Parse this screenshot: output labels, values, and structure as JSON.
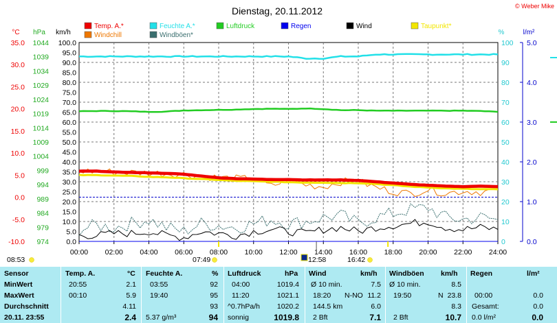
{
  "title": "Dienstag, 20.11.2012",
  "copyright": "© Weber Mike",
  "colors": {
    "temp": "#ee0000",
    "humidity": "#22e0e8",
    "pressure": "#22cc22",
    "rain": "#0000ee",
    "wind": "#000000",
    "dewpoint": "#f2e600",
    "windchill": "#ee7700",
    "gust": "#3a6f6f"
  },
  "legend": [
    {
      "label": "Temp. A.*",
      "color": "#ee0000"
    },
    {
      "label": "Feuchte A.*",
      "color": "#22e0e8"
    },
    {
      "label": "Luftdruck",
      "color": "#22cc22"
    },
    {
      "label": "Regen",
      "color": "#0000ee"
    },
    {
      "label": "Wind",
      "color": "#000000"
    },
    {
      "label": "Taupunkt*",
      "color": "#f2e600"
    },
    {
      "label": "Windchill",
      "color": "#ee7700"
    },
    {
      "label": "Windböen*",
      "color": "#3a6f6f"
    }
  ],
  "axis_units": {
    "temp": "°C",
    "pressure": "hPa",
    "wind": "km/h",
    "humidity": "%",
    "rain": "l/m²"
  },
  "axes": {
    "temp_ticks": [
      "35.0",
      "30.0",
      "25.0",
      "20.0",
      "15.0",
      "10.0",
      "5.0",
      "0.0",
      "-5.0",
      "-10.0"
    ],
    "pressure_ticks": [
      "1044",
      "1039",
      "1034",
      "1029",
      "1024",
      "1019",
      "1014",
      "1009",
      "1004",
      "999",
      "994",
      "989",
      "984",
      "979",
      "974"
    ],
    "wind_ticks": [
      "100.0",
      "95.0",
      "90.0",
      "85.0",
      "80.0",
      "75.0",
      "70.0",
      "65.0",
      "60.0",
      "55.0",
      "50.0",
      "45.0",
      "40.0",
      "35.0",
      "30.0",
      "25.0",
      "20.0",
      "15.0",
      "10.0",
      "5.0",
      "0.0"
    ],
    "humidity_ticks": [
      "100",
      "90",
      "80",
      "70",
      "60",
      "50",
      "40",
      "30",
      "20",
      "10",
      "0"
    ],
    "rain_ticks": [
      "5.0",
      "4.0",
      "3.0",
      "2.0",
      "1.0",
      "0.0"
    ],
    "time_ticks": [
      "00:00",
      "02:00",
      "04:00",
      "06:00",
      "08:00",
      "10:00",
      "12:00",
      "14:00",
      "16:00",
      "18:00",
      "20:00",
      "22:00",
      "24:00"
    ]
  },
  "markers": [
    {
      "label": "08:53",
      "icon": "sunrise-icon"
    },
    {
      "label": "07:49",
      "icon": "sun-icon"
    },
    {
      "label": "12:58",
      "icon": "moon-icon"
    },
    {
      "label": "16:42",
      "icon": "sunset-icon"
    }
  ],
  "chart_data": {
    "type": "line",
    "title": "Dienstag, 20.11.2012",
    "x_label": "",
    "x_range": [
      "00:00",
      "24:00"
    ],
    "ylim_temp": [
      -10,
      35
    ],
    "ylim_wind": [
      0,
      100
    ],
    "ylim_pressure": [
      974,
      1044
    ],
    "ylim_humidity": [
      0,
      100
    ],
    "ylim_rain": [
      0,
      5
    ],
    "x_hours": [
      0,
      1,
      2,
      3,
      4,
      5,
      6,
      7,
      8,
      9,
      10,
      11,
      12,
      13,
      14,
      15,
      16,
      17,
      18,
      19,
      20,
      21,
      22,
      23,
      24
    ],
    "series": [
      {
        "name": "Temp. A.*",
        "axis": "temp",
        "values": [
          5.9,
          5.9,
          5.7,
          5.6,
          5.5,
          5.4,
          5.2,
          4.8,
          4.4,
          4.2,
          4.1,
          4.0,
          4.0,
          3.9,
          3.9,
          3.9,
          3.8,
          3.5,
          3.2,
          2.9,
          2.7,
          2.5,
          2.4,
          2.5,
          2.4
        ]
      },
      {
        "name": "Taupunkt*",
        "axis": "temp",
        "values": [
          5.0,
          5.0,
          4.9,
          4.8,
          4.6,
          4.5,
          4.3,
          4.1,
          3.9,
          3.7,
          3.6,
          3.5,
          3.4,
          3.3,
          3.3,
          3.2,
          3.2,
          3.0,
          2.7,
          2.4,
          2.2,
          2.0,
          1.9,
          1.8,
          1.8
        ]
      },
      {
        "name": "Windchill",
        "axis": "temp",
        "values": [
          5.9,
          5.9,
          5.7,
          5.6,
          5.5,
          5.4,
          5.2,
          4.8,
          4.4,
          4.2,
          4.1,
          2.5,
          3.9,
          2.8,
          2.4,
          3.5,
          3.6,
          2.2,
          1.3,
          0.8,
          1.8,
          0.9,
          1.4,
          1.2,
          1.6
        ]
      },
      {
        "name": "Feuchte A.*",
        "axis": "humidity",
        "values": [
          93,
          93,
          93,
          93,
          93,
          93,
          93,
          93,
          93,
          93,
          93,
          93,
          93,
          92,
          92,
          93,
          93,
          94,
          94,
          94,
          94,
          94,
          94,
          94,
          94
        ]
      },
      {
        "name": "Luftdruck",
        "axis": "pressure",
        "values": [
          1019.8,
          1019.9,
          1019.9,
          1019.8,
          1019.6,
          1019.7,
          1020.1,
          1020.2,
          1020.3,
          1020.4,
          1020.6,
          1020.7,
          1020.6,
          1020.8,
          1020.6,
          1020.2,
          1020.2,
          1020.0,
          1020.0,
          1020.0,
          1020.0,
          1020.0,
          1020.0,
          1019.9,
          1019.6
        ]
      },
      {
        "name": "Wind",
        "axis": "wind",
        "values": [
          3,
          3,
          4,
          4,
          5,
          3,
          2,
          5,
          4,
          3,
          5,
          6,
          5,
          4,
          6,
          7,
          5,
          7,
          8,
          9,
          10,
          7,
          6,
          7,
          6
        ]
      },
      {
        "name": "Windböen*",
        "axis": "wind",
        "values": [
          6,
          8,
          7,
          9,
          11,
          7,
          5,
          9,
          8,
          7,
          9,
          11,
          9,
          10,
          12,
          13,
          9,
          12,
          14,
          16,
          17,
          12,
          11,
          12,
          11
        ]
      },
      {
        "name": "Regen",
        "axis": "rain",
        "values": [
          0,
          0,
          0,
          0,
          0,
          0,
          0,
          0,
          0,
          0,
          0,
          0,
          0,
          0,
          0,
          0,
          0,
          0,
          0,
          0,
          0,
          0,
          0,
          0,
          0
        ]
      }
    ]
  },
  "stats": {
    "headers": {
      "sensor": "Sensor",
      "temp": "Temp. A.",
      "temp_unit": "°C",
      "hum": "Feuchte A.",
      "hum_unit": "%",
      "press": "Luftdruck",
      "press_unit": "hPa",
      "wind": "Wind",
      "wind_unit": "km/h",
      "gust": "Windböen",
      "gust_unit": "km/h",
      "rain": "Regen",
      "rain_unit": "l/m²"
    },
    "row_labels": {
      "min": "MinWert",
      "max": "MaxWert",
      "avg": "Durchschnitt",
      "current": "20.11. 23:55"
    },
    "temp": {
      "min_time": "20:55",
      "min": "2.1",
      "max_time": "00:10",
      "max": "5.9",
      "avg": "4.11",
      "current": "2.4"
    },
    "hum": {
      "min_time": "03:55",
      "min": "92",
      "max_time": "19:40",
      "max": "95",
      "avg": "93",
      "abs": "5.37 g/m³",
      "current": "94"
    },
    "press": {
      "min_time": "04:00",
      "min": "1019.4",
      "max_time": "11:20",
      "max": "1021.1",
      "trend": "^0.7hPa/h",
      "avg": "1020.2",
      "weather": "sonnig",
      "current": "1019.8"
    },
    "wind": {
      "avg10_label": "Ø 10 min.",
      "avg10": "7.5",
      "max_time": "18:20",
      "dir": "N-NO",
      "max": "11.2",
      "dist": "144.5 km",
      "avg": "6.0",
      "bft": "2 Bft",
      "current": "7.1"
    },
    "gust": {
      "avg10_label": "Ø 10 min.",
      "avg10": "8.5",
      "max_time": "19:50",
      "dir": "N",
      "max": "23.8",
      "avg": "8.3",
      "bft": "2 Bft",
      "current": "10.7"
    },
    "rain": {
      "max_time": "00:00",
      "max": "0.0",
      "total_label": "Gesamt:",
      "total": "0.0",
      "current_label": "0.0 l/m²",
      "current": "0.0"
    }
  }
}
